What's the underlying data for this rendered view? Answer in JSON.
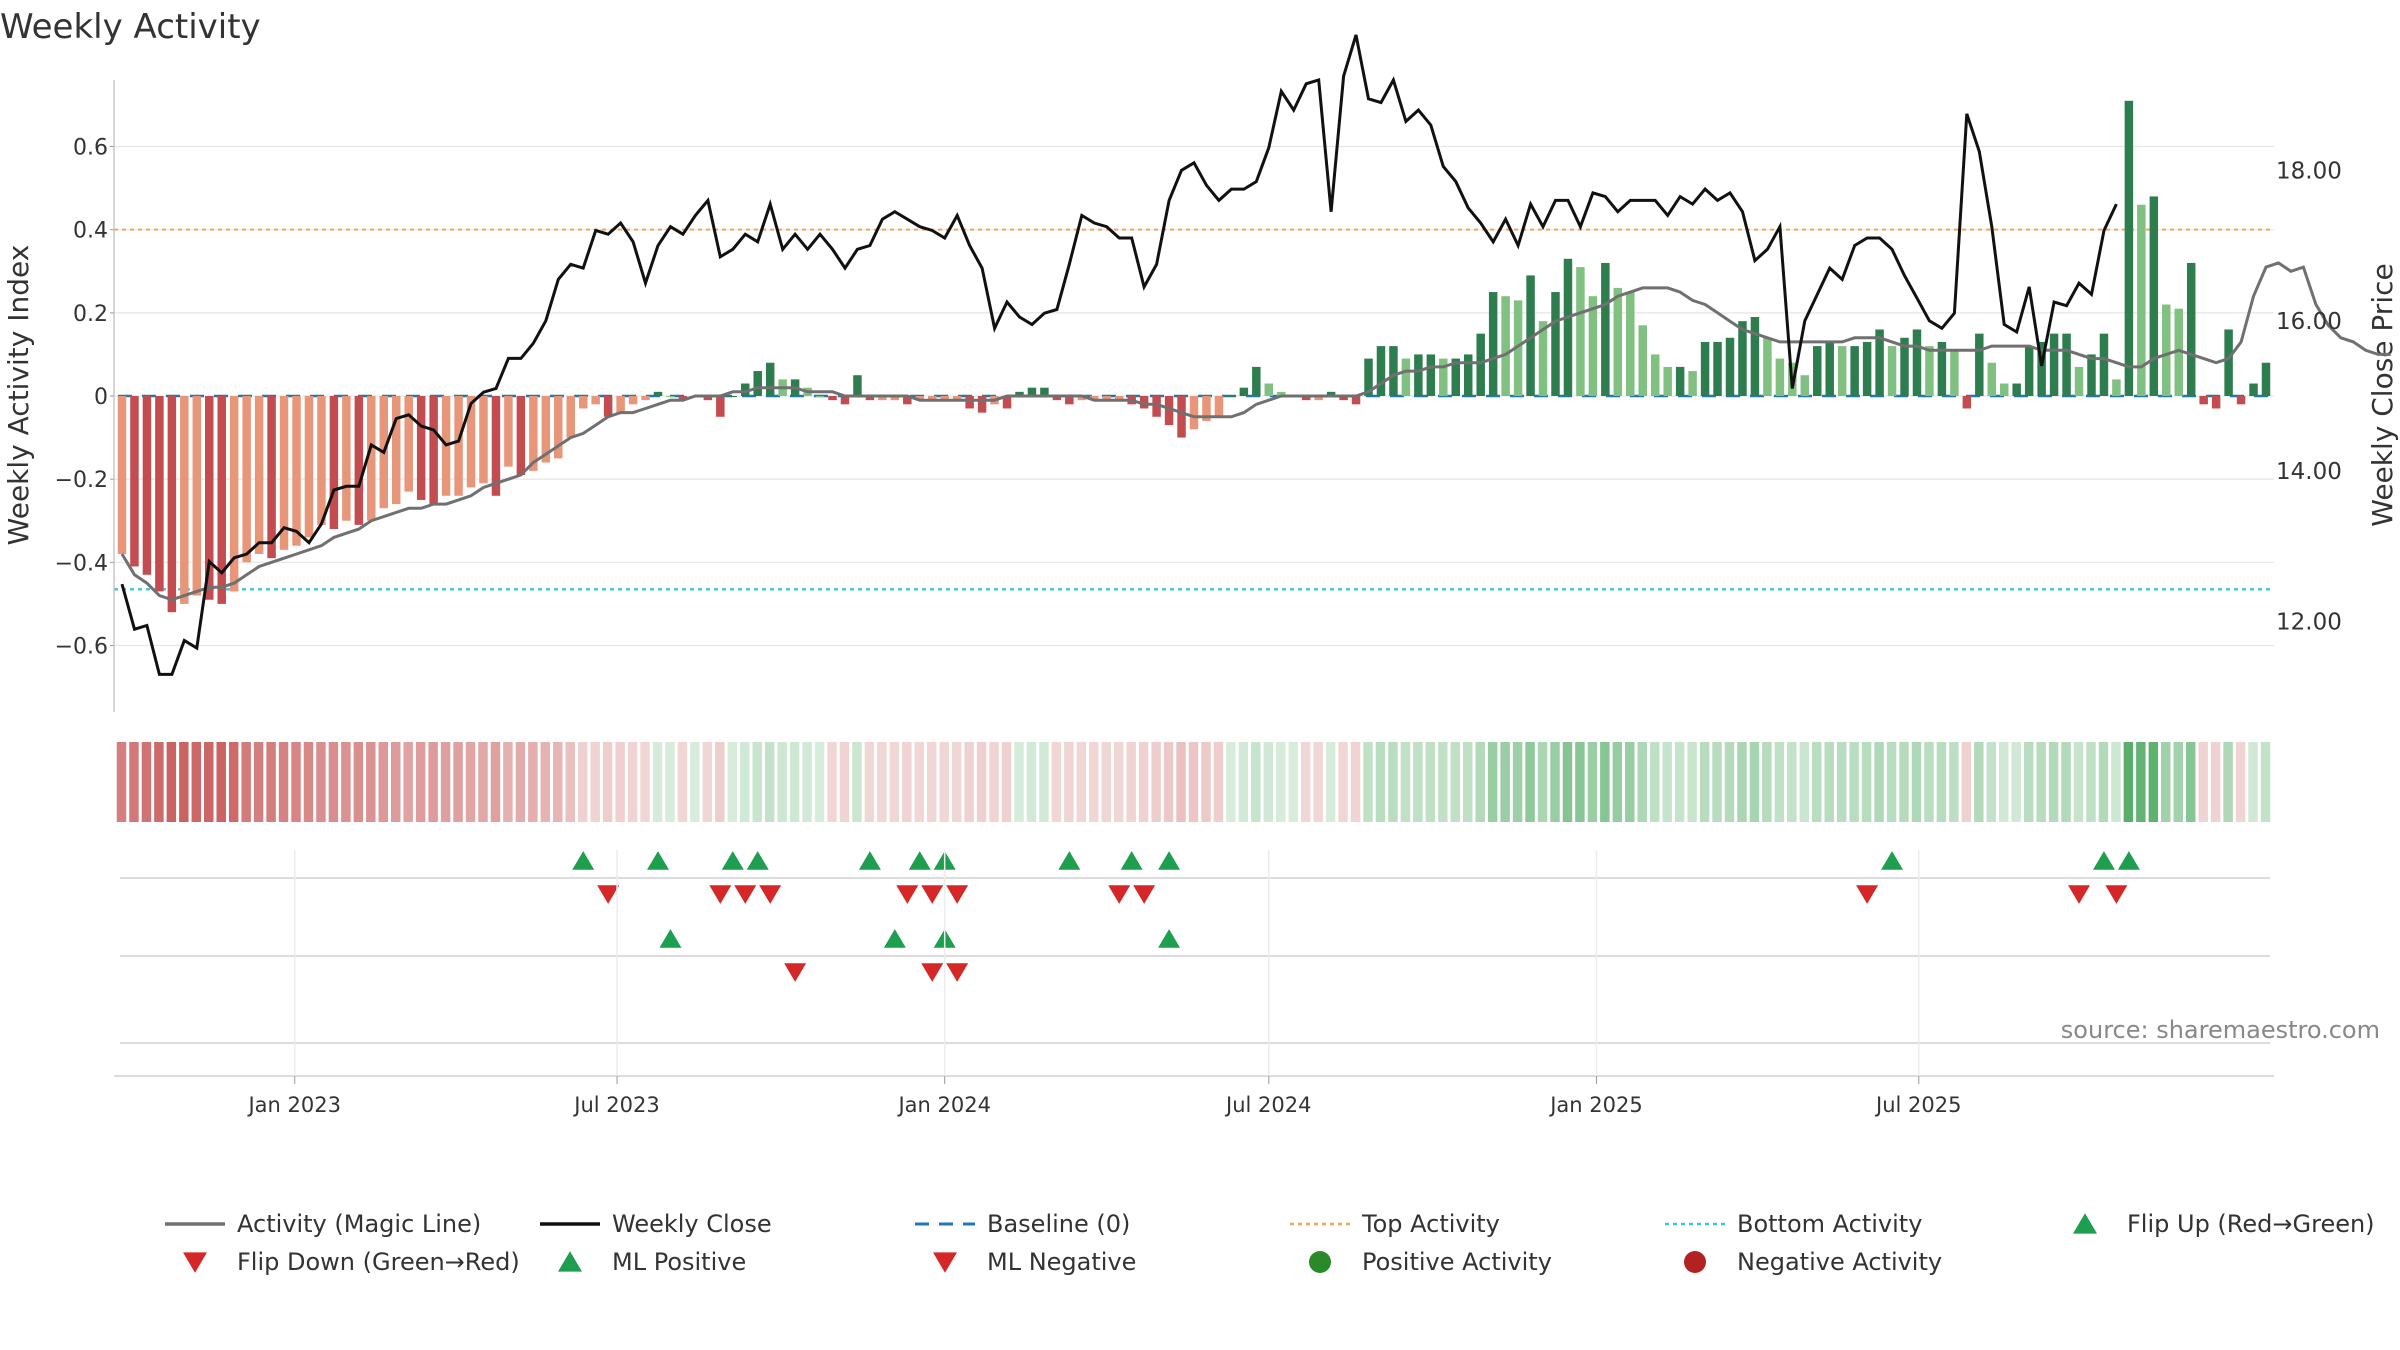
{
  "title": "Weekly Activity",
  "source_text": "source: sharemaestro.com",
  "colors": {
    "neg_strong": "#c24c4f",
    "neg_light": "#e8967a",
    "pos_strong": "#2e7d4f",
    "pos_light": "#80c080",
    "magic_line": "#707070",
    "close_line": "#111111",
    "baseline": "#1f78b4",
    "top_line": "#f2a35e",
    "bottom_line": "#3cc8d8",
    "flip_up": "#1e9e4f",
    "flip_down": "#d62728",
    "pos_dot": "#2a8a2a",
    "neg_dot": "#b22222"
  },
  "chart_data": {
    "type": "bar",
    "title": "Weekly Activity",
    "ylabel_left": "Weekly Activity Index",
    "ylabel_right": "Weekly Close Price",
    "ylim_left": [
      -0.76,
      0.76
    ],
    "ylim_right": [
      10.8,
      19.2
    ],
    "yticks_left": [
      {
        "v": 0.6,
        "label": "0.6"
      },
      {
        "v": 0.4,
        "label": "0.4"
      },
      {
        "v": 0.2,
        "label": "0.2"
      },
      {
        "v": 0.0,
        "label": "0"
      },
      {
        "v": -0.2,
        "label": "−0.2"
      },
      {
        "v": -0.4,
        "label": "−0.4"
      },
      {
        "v": -0.6,
        "label": "−0.6"
      }
    ],
    "yticks_right": [
      {
        "v": 18,
        "label": "18.00"
      },
      {
        "v": 16,
        "label": "16.00"
      },
      {
        "v": 14,
        "label": "14.00"
      },
      {
        "v": 12,
        "label": "12.00"
      }
    ],
    "top_activity": 0.4,
    "bottom_activity": -0.465,
    "x_start": "2022-09-26",
    "x_end": "2025-10-13",
    "xticks": [
      {
        "date": "2023-01-01",
        "label": "Jan 2023"
      },
      {
        "date": "2023-07-01",
        "label": "Jul 2023"
      },
      {
        "date": "2024-01-01",
        "label": "Jan 2024"
      },
      {
        "date": "2024-07-01",
        "label": "Jul 2024"
      },
      {
        "date": "2025-01-01",
        "label": "Jan 2025"
      },
      {
        "date": "2025-07-01",
        "label": "Jul 2025"
      }
    ],
    "weekly_activity": [
      -0.38,
      -0.41,
      -0.43,
      -0.47,
      -0.52,
      -0.5,
      -0.48,
      -0.49,
      -0.5,
      -0.47,
      -0.4,
      -0.38,
      -0.39,
      -0.37,
      -0.36,
      -0.34,
      -0.31,
      -0.32,
      -0.3,
      -0.31,
      -0.3,
      -0.27,
      -0.26,
      -0.23,
      -0.25,
      -0.26,
      -0.24,
      -0.24,
      -0.22,
      -0.21,
      -0.24,
      -0.17,
      -0.19,
      -0.18,
      -0.16,
      -0.15,
      -0.1,
      -0.03,
      -0.02,
      -0.05,
      -0.04,
      -0.02,
      -0.01,
      0.01,
      0.0,
      -0.01,
      0.0,
      -0.01,
      -0.05,
      0.0,
      0.03,
      0.06,
      0.08,
      0.04,
      0.04,
      0.02,
      0.0,
      -0.01,
      -0.02,
      0.05,
      -0.01,
      -0.01,
      -0.01,
      -0.02,
      -0.01,
      -0.01,
      -0.01,
      -0.01,
      -0.03,
      -0.04,
      -0.02,
      -0.03,
      0.01,
      0.02,
      0.02,
      -0.01,
      -0.02,
      -0.01,
      -0.01,
      -0.01,
      -0.01,
      -0.02,
      -0.03,
      -0.05,
      -0.07,
      -0.1,
      -0.08,
      -0.06,
      -0.05,
      0.0,
      0.02,
      0.07,
      0.03,
      0.01,
      0.0,
      -0.01,
      -0.01,
      0.01,
      -0.01,
      -0.02,
      0.09,
      0.12,
      0.12,
      0.09,
      0.1,
      0.1,
      0.09,
      0.09,
      0.1,
      0.15,
      0.25,
      0.24,
      0.23,
      0.29,
      0.18,
      0.25,
      0.33,
      0.31,
      0.24,
      0.32,
      0.26,
      0.25,
      0.17,
      0.1,
      0.07,
      0.07,
      0.06,
      0.13,
      0.13,
      0.14,
      0.18,
      0.19,
      0.14,
      0.09,
      0.08,
      0.05,
      0.12,
      0.13,
      0.12,
      0.12,
      0.13,
      0.16,
      0.12,
      0.14,
      0.16,
      0.12,
      0.13,
      0.11,
      -0.03,
      0.15,
      0.08,
      0.03,
      0.03,
      0.12,
      0.13,
      0.15,
      0.15,
      0.07,
      0.1,
      0.15,
      0.04,
      0.71,
      0.46,
      0.48,
      0.22,
      0.21,
      0.32,
      -0.02,
      -0.03,
      0.16,
      -0.02,
      0.03,
      0.08
    ],
    "activity_magic_line": [
      -0.38,
      -0.43,
      -0.45,
      -0.48,
      -0.49,
      -0.48,
      -0.47,
      -0.46,
      -0.46,
      -0.45,
      -0.43,
      -0.41,
      -0.4,
      -0.39,
      -0.38,
      -0.37,
      -0.36,
      -0.34,
      -0.33,
      -0.32,
      -0.3,
      -0.29,
      -0.28,
      -0.27,
      -0.27,
      -0.26,
      -0.26,
      -0.25,
      -0.24,
      -0.22,
      -0.21,
      -0.2,
      -0.19,
      -0.16,
      -0.14,
      -0.12,
      -0.1,
      -0.09,
      -0.07,
      -0.05,
      -0.04,
      -0.04,
      -0.03,
      -0.02,
      -0.01,
      -0.01,
      0.0,
      0.0,
      0.0,
      0.01,
      0.01,
      0.02,
      0.02,
      0.02,
      0.02,
      0.01,
      0.01,
      0.01,
      0.0,
      0.0,
      0.0,
      0.0,
      0.0,
      0.0,
      -0.01,
      -0.01,
      -0.01,
      -0.01,
      -0.01,
      -0.01,
      -0.01,
      0.0,
      0.0,
      0.0,
      0.0,
      0.0,
      0.0,
      0.0,
      -0.01,
      -0.01,
      -0.01,
      -0.01,
      -0.02,
      -0.02,
      -0.03,
      -0.04,
      -0.05,
      -0.05,
      -0.05,
      -0.05,
      -0.04,
      -0.02,
      -0.01,
      0.0,
      0.0,
      0.0,
      0.0,
      0.0,
      0.0,
      0.0,
      0.01,
      0.03,
      0.05,
      0.06,
      0.06,
      0.07,
      0.07,
      0.08,
      0.08,
      0.08,
      0.09,
      0.1,
      0.12,
      0.14,
      0.16,
      0.18,
      0.19,
      0.2,
      0.21,
      0.22,
      0.24,
      0.25,
      0.26,
      0.26,
      0.26,
      0.25,
      0.23,
      0.22,
      0.2,
      0.18,
      0.16,
      0.15,
      0.14,
      0.13,
      0.13,
      0.13,
      0.13,
      0.13,
      0.13,
      0.14,
      0.14,
      0.14,
      0.13,
      0.12,
      0.12,
      0.11,
      0.11,
      0.11,
      0.11,
      0.11,
      0.12,
      0.12,
      0.12,
      0.12,
      0.11,
      0.11,
      0.11,
      0.1,
      0.09,
      0.09,
      0.08,
      0.07,
      0.07,
      0.09,
      0.1,
      0.11,
      0.1,
      0.09,
      0.08,
      0.09,
      0.13,
      0.24,
      0.31,
      0.32,
      0.3,
      0.31,
      0.22,
      0.17,
      0.14,
      0.13,
      0.11,
      0.1,
      0.1
    ],
    "weekly_close": [
      12.5,
      11.9,
      11.95,
      11.3,
      11.3,
      11.75,
      11.65,
      12.8,
      12.65,
      12.85,
      12.9,
      13.05,
      13.05,
      13.25,
      13.2,
      13.05,
      13.3,
      13.75,
      13.8,
      13.8,
      14.35,
      14.25,
      14.7,
      14.75,
      14.6,
      14.55,
      14.35,
      14.4,
      14.9,
      15.05,
      15.1,
      15.5,
      15.5,
      15.7,
      16.0,
      16.55,
      16.75,
      16.7,
      17.2,
      17.15,
      17.3,
      17.05,
      16.5,
      17.0,
      17.25,
      17.15,
      17.4,
      17.6,
      16.85,
      16.95,
      17.15,
      17.05,
      17.55,
      16.95,
      17.15,
      16.95,
      17.15,
      16.95,
      16.7,
      16.95,
      17.0,
      17.35,
      17.45,
      17.35,
      17.25,
      17.2,
      17.1,
      17.4,
      17.0,
      16.7,
      15.9,
      16.25,
      16.05,
      15.95,
      16.1,
      16.15,
      16.75,
      17.4,
      17.3,
      17.25,
      17.1,
      17.1,
      16.45,
      16.75,
      17.6,
      18.0,
      18.1,
      17.8,
      17.6,
      17.75,
      17.75,
      17.85,
      18.3,
      19.05,
      18.8,
      19.15,
      19.2,
      17.45,
      19.25,
      19.8,
      18.95,
      18.9,
      19.2,
      18.65,
      18.8,
      18.6,
      18.05,
      17.85,
      17.5,
      17.3,
      17.05,
      17.35,
      17.0,
      17.55,
      17.25,
      17.6,
      17.6,
      17.25,
      17.7,
      17.65,
      17.45,
      17.6,
      17.6,
      17.6,
      17.4,
      17.65,
      17.55,
      17.75,
      17.6,
      17.7,
      17.45,
      16.8,
      16.95,
      17.25,
      15.1,
      16.0,
      16.35,
      16.7,
      16.55,
      17.0,
      17.1,
      17.1,
      16.95,
      16.6,
      16.3,
      16.0,
      15.9,
      16.1,
      18.75,
      18.25,
      17.25,
      15.95,
      15.85,
      16.45,
      15.4,
      16.25,
      16.2,
      16.5,
      16.35,
      17.2,
      17.55
    ],
    "flip_up_weeks": [
      37,
      43,
      49,
      51,
      60,
      64,
      66,
      76,
      81,
      84,
      142,
      159,
      161
    ],
    "flip_down_weeks": [
      39,
      48,
      50,
      52,
      63,
      65,
      67,
      80,
      82,
      140,
      157,
      160
    ],
    "ml_positive_weeks": [
      44,
      62,
      66,
      84
    ],
    "ml_negative_weeks": [
      54,
      65,
      67
    ],
    "legend": [
      {
        "label": "Activity (Magic Line)",
        "kind": "line",
        "color": "#707070"
      },
      {
        "label": "Weekly Close",
        "kind": "line",
        "color": "#111111"
      },
      {
        "label": "Baseline (0)",
        "kind": "dash",
        "color": "#1f78b4"
      },
      {
        "label": "Top Activity",
        "kind": "dot",
        "color": "#f2a35e"
      },
      {
        "label": "Bottom Activity",
        "kind": "dot",
        "color": "#3cc8d8"
      },
      {
        "label": "Flip Up (Red→Green)",
        "kind": "tri-up",
        "color": "#1e9e4f"
      },
      {
        "label": "Flip Down (Green→Red)",
        "kind": "tri-down",
        "color": "#d62728"
      },
      {
        "label": "ML Positive",
        "kind": "tri-up",
        "color": "#1e9e4f"
      },
      {
        "label": "ML Negative",
        "kind": "tri-down",
        "color": "#d62728"
      },
      {
        "label": "Positive Activity",
        "kind": "circle",
        "color": "#2a8a2a"
      },
      {
        "label": "Negative Activity",
        "kind": "circle",
        "color": "#b22222"
      }
    ]
  }
}
